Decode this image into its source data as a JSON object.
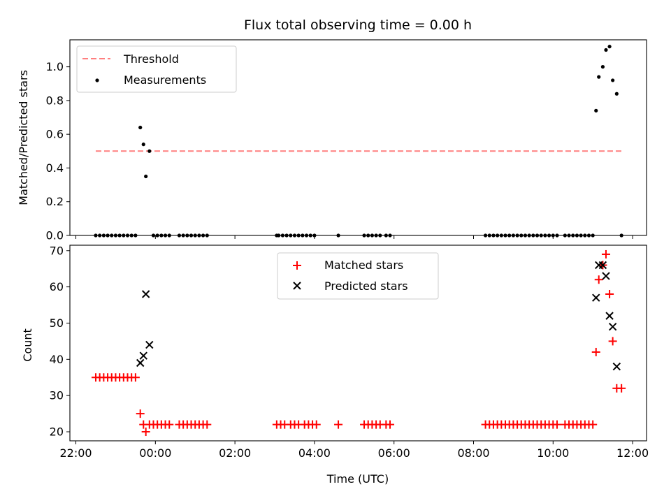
{
  "chart_data": [
    {
      "type": "scatter",
      "panel": "top",
      "title": "Flux total observing time = 0.00 h",
      "xlabel": "",
      "ylabel": "Matched/Predicted stars",
      "x_unit": "hours since 00:00 UTC (negative = previous day)",
      "xlim": [
        -2.15,
        12.35
      ],
      "ylim": [
        0.0,
        1.16
      ],
      "yticks": [
        0.0,
        0.2,
        0.4,
        0.6,
        0.8,
        1.0
      ],
      "ytick_labels": [
        "0.0",
        "0.2",
        "0.4",
        "0.6",
        "0.8",
        "1.0"
      ],
      "grid": false,
      "legend": {
        "position": "upper left",
        "entries": [
          "Threshold",
          "Measurements"
        ]
      },
      "threshold": {
        "name": "Threshold",
        "value": 0.5,
        "x_range": [
          -1.5,
          11.72
        ],
        "color": "#ff7f7f",
        "style": "dashed"
      },
      "series": [
        {
          "name": "Measurements",
          "color": "#000000",
          "marker": "dot",
          "points": [
            [
              -1.5,
              0
            ],
            [
              -1.4,
              0
            ],
            [
              -1.3,
              0
            ],
            [
              -1.2,
              0
            ],
            [
              -1.1,
              0
            ],
            [
              -1.0,
              0
            ],
            [
              -0.9,
              0
            ],
            [
              -0.8,
              0
            ],
            [
              -0.7,
              0
            ],
            [
              -0.6,
              0
            ],
            [
              -0.5,
              0
            ],
            [
              -0.38,
              0.64
            ],
            [
              -0.3,
              0.54
            ],
            [
              -0.24,
              0.35
            ],
            [
              -0.15,
              0.5
            ],
            [
              -0.05,
              0
            ],
            [
              0.05,
              0
            ],
            [
              0.15,
              0
            ],
            [
              0.25,
              0
            ],
            [
              0.35,
              0
            ],
            [
              0.6,
              0
            ],
            [
              0.7,
              0
            ],
            [
              0.8,
              0
            ],
            [
              0.9,
              0
            ],
            [
              1.0,
              0
            ],
            [
              1.1,
              0
            ],
            [
              1.2,
              0
            ],
            [
              1.3,
              0
            ],
            [
              3.05,
              0
            ],
            [
              3.1,
              0
            ],
            [
              3.2,
              0
            ],
            [
              3.3,
              0
            ],
            [
              3.4,
              0
            ],
            [
              3.5,
              0
            ],
            [
              3.6,
              0
            ],
            [
              3.7,
              0
            ],
            [
              3.8,
              0
            ],
            [
              3.9,
              0
            ],
            [
              4.0,
              0
            ],
            [
              4.6,
              0
            ],
            [
              5.25,
              0
            ],
            [
              5.35,
              0
            ],
            [
              5.45,
              0
            ],
            [
              5.55,
              0
            ],
            [
              5.65,
              0
            ],
            [
              5.8,
              0
            ],
            [
              5.9,
              0
            ],
            [
              8.3,
              0
            ],
            [
              8.4,
              0
            ],
            [
              8.5,
              0
            ],
            [
              8.6,
              0
            ],
            [
              8.7,
              0
            ],
            [
              8.8,
              0
            ],
            [
              8.9,
              0
            ],
            [
              9.0,
              0
            ],
            [
              9.1,
              0
            ],
            [
              9.2,
              0
            ],
            [
              9.3,
              0
            ],
            [
              9.4,
              0
            ],
            [
              9.5,
              0
            ],
            [
              9.6,
              0
            ],
            [
              9.7,
              0
            ],
            [
              9.8,
              0
            ],
            [
              9.9,
              0
            ],
            [
              10.0,
              0
            ],
            [
              10.1,
              0
            ],
            [
              10.3,
              0
            ],
            [
              10.4,
              0
            ],
            [
              10.5,
              0
            ],
            [
              10.6,
              0
            ],
            [
              10.7,
              0
            ],
            [
              10.8,
              0
            ],
            [
              10.9,
              0
            ],
            [
              11.0,
              0
            ],
            [
              11.08,
              0.74
            ],
            [
              11.15,
              0.94
            ],
            [
              11.25,
              1.0
            ],
            [
              11.33,
              1.1
            ],
            [
              11.42,
              1.12
            ],
            [
              11.5,
              0.92
            ],
            [
              11.6,
              0.84
            ],
            [
              11.72,
              0
            ]
          ]
        }
      ]
    },
    {
      "type": "scatter",
      "panel": "bottom",
      "title": "",
      "xlabel": "Time (UTC)",
      "ylabel": "Count",
      "x_unit": "hours since 00:00 UTC (negative = previous day)",
      "xlim": [
        -2.15,
        12.35
      ],
      "ylim": [
        17.5,
        71.5
      ],
      "yticks": [
        20,
        30,
        40,
        50,
        60,
        70
      ],
      "ytick_labels": [
        "20",
        "30",
        "40",
        "50",
        "60",
        "70"
      ],
      "xticks": [
        -2,
        0,
        2,
        4,
        6,
        8,
        10,
        12
      ],
      "xtick_labels": [
        "22:00",
        "00:00",
        "02:00",
        "04:00",
        "06:00",
        "08:00",
        "10:00",
        "12:00"
      ],
      "grid": false,
      "legend": {
        "position": "upper center",
        "entries": [
          "Matched stars",
          "Predicted stars"
        ]
      },
      "series": [
        {
          "name": "Matched stars",
          "color": "#ff0000",
          "marker": "plus",
          "points": [
            [
              -1.5,
              35
            ],
            [
              -1.4,
              35
            ],
            [
              -1.3,
              35
            ],
            [
              -1.2,
              35
            ],
            [
              -1.1,
              35
            ],
            [
              -1.0,
              35
            ],
            [
              -0.9,
              35
            ],
            [
              -0.8,
              35
            ],
            [
              -0.7,
              35
            ],
            [
              -0.6,
              35
            ],
            [
              -0.5,
              35
            ],
            [
              -0.38,
              25
            ],
            [
              -0.3,
              22
            ],
            [
              -0.24,
              20
            ],
            [
              -0.15,
              22
            ],
            [
              -0.05,
              22
            ],
            [
              0.05,
              22
            ],
            [
              0.15,
              22
            ],
            [
              0.25,
              22
            ],
            [
              0.35,
              22
            ],
            [
              0.6,
              22
            ],
            [
              0.7,
              22
            ],
            [
              0.8,
              22
            ],
            [
              0.9,
              22
            ],
            [
              1.0,
              22
            ],
            [
              1.1,
              22
            ],
            [
              1.2,
              22
            ],
            [
              1.3,
              22
            ],
            [
              3.05,
              22
            ],
            [
              3.15,
              22
            ],
            [
              3.25,
              22
            ],
            [
              3.4,
              22
            ],
            [
              3.5,
              22
            ],
            [
              3.6,
              22
            ],
            [
              3.75,
              22
            ],
            [
              3.85,
              22
            ],
            [
              3.95,
              22
            ],
            [
              4.05,
              22
            ],
            [
              4.6,
              22
            ],
            [
              5.25,
              22
            ],
            [
              5.35,
              22
            ],
            [
              5.45,
              22
            ],
            [
              5.55,
              22
            ],
            [
              5.65,
              22
            ],
            [
              5.8,
              22
            ],
            [
              5.9,
              22
            ],
            [
              8.3,
              22
            ],
            [
              8.4,
              22
            ],
            [
              8.5,
              22
            ],
            [
              8.6,
              22
            ],
            [
              8.7,
              22
            ],
            [
              8.8,
              22
            ],
            [
              8.9,
              22
            ],
            [
              9.0,
              22
            ],
            [
              9.1,
              22
            ],
            [
              9.2,
              22
            ],
            [
              9.3,
              22
            ],
            [
              9.4,
              22
            ],
            [
              9.5,
              22
            ],
            [
              9.6,
              22
            ],
            [
              9.7,
              22
            ],
            [
              9.8,
              22
            ],
            [
              9.9,
              22
            ],
            [
              10.0,
              22
            ],
            [
              10.1,
              22
            ],
            [
              10.3,
              22
            ],
            [
              10.4,
              22
            ],
            [
              10.5,
              22
            ],
            [
              10.6,
              22
            ],
            [
              10.7,
              22
            ],
            [
              10.8,
              22
            ],
            [
              10.9,
              22
            ],
            [
              11.0,
              22
            ],
            [
              11.08,
              42
            ],
            [
              11.15,
              62
            ],
            [
              11.25,
              66
            ],
            [
              11.33,
              69
            ],
            [
              11.42,
              58
            ],
            [
              11.5,
              45
            ],
            [
              11.6,
              32
            ],
            [
              11.72,
              32
            ]
          ]
        },
        {
          "name": "Predicted stars",
          "color": "#000000",
          "marker": "x",
          "points": [
            [
              -0.38,
              39
            ],
            [
              -0.3,
              41
            ],
            [
              -0.24,
              58
            ],
            [
              -0.15,
              44
            ],
            [
              11.08,
              57
            ],
            [
              11.15,
              66
            ],
            [
              11.25,
              66
            ],
            [
              11.33,
              63
            ],
            [
              11.42,
              52
            ],
            [
              11.5,
              49
            ],
            [
              11.6,
              38
            ]
          ]
        }
      ]
    }
  ]
}
